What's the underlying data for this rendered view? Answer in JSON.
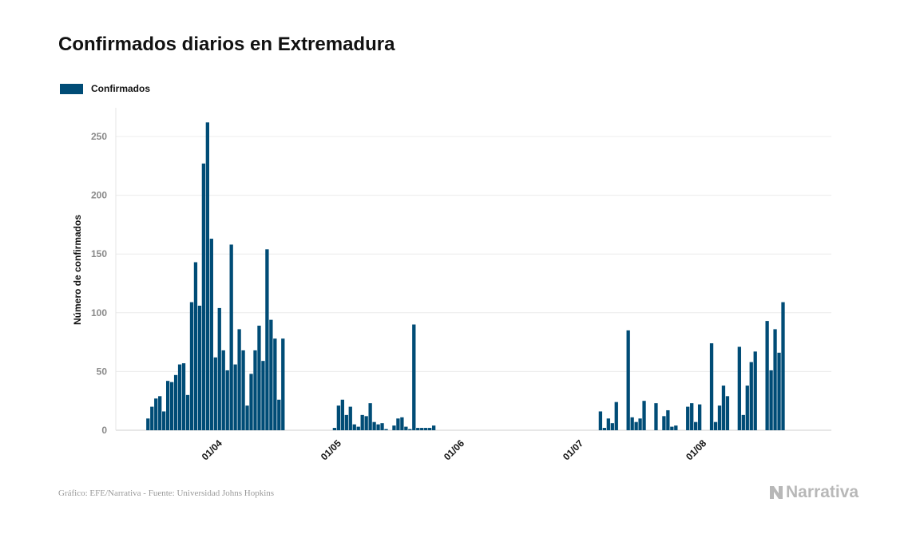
{
  "chart_data": {
    "type": "bar",
    "title": "Confirmados diarios en Extremadura",
    "ylabel": "Número de confirmados",
    "xlabel": "",
    "ylim": [
      0,
      275
    ],
    "yticks": [
      0,
      50,
      100,
      150,
      200,
      250
    ],
    "xtick_labels": [
      "01/04",
      "01/05",
      "01/06",
      "01/07",
      "01/08"
    ],
    "legend": "top-left",
    "grid": true,
    "color": "#004c76",
    "series": [
      {
        "name": "Confirmados",
        "points": [
          [
            "2020-03-14",
            10
          ],
          [
            "2020-03-15",
            20
          ],
          [
            "2020-03-16",
            27
          ],
          [
            "2020-03-17",
            29
          ],
          [
            "2020-03-18",
            16
          ],
          [
            "2020-03-19",
            42
          ],
          [
            "2020-03-20",
            41
          ],
          [
            "2020-03-21",
            47
          ],
          [
            "2020-03-22",
            56
          ],
          [
            "2020-03-23",
            57
          ],
          [
            "2020-03-24",
            30
          ],
          [
            "2020-03-25",
            109
          ],
          [
            "2020-03-26",
            143
          ],
          [
            "2020-03-27",
            106
          ],
          [
            "2020-03-28",
            227
          ],
          [
            "2020-03-29",
            262
          ],
          [
            "2020-03-30",
            163
          ],
          [
            "2020-03-31",
            62
          ],
          [
            "2020-04-01",
            104
          ],
          [
            "2020-04-02",
            68
          ],
          [
            "2020-04-03",
            51
          ],
          [
            "2020-04-04",
            158
          ],
          [
            "2020-04-05",
            56
          ],
          [
            "2020-04-06",
            86
          ],
          [
            "2020-04-07",
            68
          ],
          [
            "2020-04-08",
            21
          ],
          [
            "2020-04-09",
            48
          ],
          [
            "2020-04-10",
            68
          ],
          [
            "2020-04-11",
            89
          ],
          [
            "2020-04-12",
            59
          ],
          [
            "2020-04-13",
            154
          ],
          [
            "2020-04-14",
            94
          ],
          [
            "2020-04-15",
            78
          ],
          [
            "2020-04-16",
            26
          ],
          [
            "2020-04-17",
            78
          ],
          [
            "2020-04-30",
            2
          ],
          [
            "2020-05-01",
            21
          ],
          [
            "2020-05-02",
            26
          ],
          [
            "2020-05-03",
            13
          ],
          [
            "2020-05-04",
            20
          ],
          [
            "2020-05-05",
            5
          ],
          [
            "2020-05-06",
            3
          ],
          [
            "2020-05-07",
            13
          ],
          [
            "2020-05-08",
            12
          ],
          [
            "2020-05-09",
            23
          ],
          [
            "2020-05-10",
            7
          ],
          [
            "2020-05-11",
            5
          ],
          [
            "2020-05-12",
            6
          ],
          [
            "2020-05-13",
            1
          ],
          [
            "2020-05-14",
            0
          ],
          [
            "2020-05-15",
            4
          ],
          [
            "2020-05-16",
            10
          ],
          [
            "2020-05-17",
            11
          ],
          [
            "2020-05-18",
            3
          ],
          [
            "2020-05-19",
            1
          ],
          [
            "2020-05-20",
            90
          ],
          [
            "2020-05-21",
            2
          ],
          [
            "2020-05-22",
            2
          ],
          [
            "2020-05-23",
            2
          ],
          [
            "2020-05-24",
            2
          ],
          [
            "2020-05-25",
            4
          ],
          [
            "2020-07-06",
            16
          ],
          [
            "2020-07-07",
            2
          ],
          [
            "2020-07-08",
            10
          ],
          [
            "2020-07-09",
            6
          ],
          [
            "2020-07-10",
            24
          ],
          [
            "2020-07-11",
            0
          ],
          [
            "2020-07-12",
            0
          ],
          [
            "2020-07-13",
            85
          ],
          [
            "2020-07-14",
            11
          ],
          [
            "2020-07-15",
            7
          ],
          [
            "2020-07-16",
            10
          ],
          [
            "2020-07-17",
            25
          ],
          [
            "2020-07-18",
            0
          ],
          [
            "2020-07-19",
            0
          ],
          [
            "2020-07-20",
            23
          ],
          [
            "2020-07-21",
            0
          ],
          [
            "2020-07-22",
            12
          ],
          [
            "2020-07-23",
            17
          ],
          [
            "2020-07-24",
            3
          ],
          [
            "2020-07-25",
            4
          ],
          [
            "2020-07-26",
            0
          ],
          [
            "2020-07-27",
            0
          ],
          [
            "2020-07-28",
            20
          ],
          [
            "2020-07-29",
            23
          ],
          [
            "2020-07-30",
            7
          ],
          [
            "2020-07-31",
            22
          ],
          [
            "2020-08-01",
            0
          ],
          [
            "2020-08-02",
            0
          ],
          [
            "2020-08-03",
            74
          ],
          [
            "2020-08-04",
            7
          ],
          [
            "2020-08-05",
            21
          ],
          [
            "2020-08-06",
            38
          ],
          [
            "2020-08-07",
            29
          ],
          [
            "2020-08-08",
            0
          ],
          [
            "2020-08-09",
            0
          ],
          [
            "2020-08-10",
            71
          ],
          [
            "2020-08-11",
            13
          ],
          [
            "2020-08-12",
            38
          ],
          [
            "2020-08-13",
            58
          ],
          [
            "2020-08-14",
            67
          ],
          [
            "2020-08-15",
            0
          ],
          [
            "2020-08-16",
            0
          ],
          [
            "2020-08-17",
            93
          ],
          [
            "2020-08-18",
            51
          ],
          [
            "2020-08-19",
            86
          ],
          [
            "2020-08-20",
            66
          ],
          [
            "2020-08-21",
            109
          ]
        ]
      }
    ]
  },
  "footer": {
    "source": "Gráfico: EFE/Narrativa - Fuente: Universidad Johns Hopkins",
    "brand": "Narrativa"
  }
}
